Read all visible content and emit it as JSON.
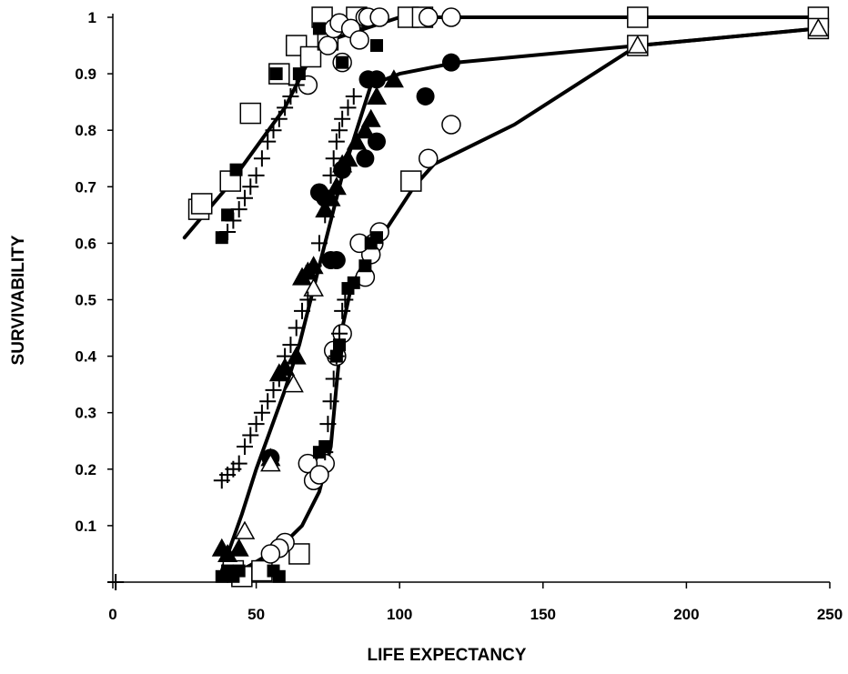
{
  "chart_data": {
    "type": "scatter",
    "title": "",
    "xlabel": "LIFE EXPECTANCY",
    "ylabel": "SURVIVABILITY",
    "xlim": [
      0,
      250
    ],
    "ylim": [
      0,
      1
    ],
    "xticks": [
      "0",
      "50",
      "100",
      "150",
      "200",
      "250"
    ],
    "yticks": [
      "0.1",
      "0.2",
      "0.3",
      "0.4",
      "0.5",
      "0.6",
      "0.7",
      "0.8",
      "0.9",
      "1"
    ],
    "yticks_values": [
      0.1,
      0.2,
      0.3,
      0.4,
      0.5,
      0.6,
      0.7,
      0.8,
      0.9,
      1
    ],
    "xticks_values": [
      0,
      50,
      100,
      150,
      200,
      250
    ],
    "grid": false,
    "legend": "none",
    "series": [
      {
        "marker": "open-square",
        "points": [
          [
            30,
            0.66
          ],
          [
            31,
            0.67
          ],
          [
            41,
            0.71
          ],
          [
            48,
            0.83
          ],
          [
            58,
            0.9
          ],
          [
            64,
            0.95
          ],
          [
            69,
            0.93
          ],
          [
            73,
            1
          ],
          [
            75,
            0.96
          ],
          [
            85,
            1
          ],
          [
            103,
            1
          ],
          [
            108,
            1
          ],
          [
            183,
            1
          ],
          [
            246,
            1
          ],
          [
            42,
            0.02
          ],
          [
            45,
            0.01
          ],
          [
            52,
            0.02
          ],
          [
            65,
            0.05
          ],
          [
            104,
            0.71
          ],
          [
            183,
            0.95
          ],
          [
            246,
            0.98
          ]
        ]
      },
      {
        "marker": "open-circle",
        "points": [
          [
            68,
            0.88
          ],
          [
            75,
            0.95
          ],
          [
            77,
            0.98
          ],
          [
            79,
            0.99
          ],
          [
            80,
            0.92
          ],
          [
            83,
            0.98
          ],
          [
            86,
            0.96
          ],
          [
            88,
            1
          ],
          [
            89,
            1
          ],
          [
            93,
            1
          ],
          [
            110,
            1
          ],
          [
            118,
            1
          ],
          [
            118,
            0.81
          ],
          [
            110,
            0.75
          ],
          [
            93,
            0.62
          ],
          [
            91,
            0.6
          ],
          [
            90,
            0.58
          ],
          [
            88,
            0.54
          ],
          [
            86,
            0.6
          ],
          [
            80,
            0.44
          ],
          [
            78,
            0.4
          ],
          [
            77,
            0.41
          ],
          [
            74,
            0.21
          ],
          [
            68,
            0.21
          ],
          [
            70,
            0.18
          ],
          [
            72,
            0.19
          ],
          [
            60,
            0.07
          ],
          [
            58,
            0.06
          ],
          [
            55,
            0.05
          ]
        ]
      },
      {
        "marker": "filled-circle",
        "points": [
          [
            72,
            0.69
          ],
          [
            74,
            0.68
          ],
          [
            76,
            0.57
          ],
          [
            78,
            0.57
          ],
          [
            80,
            0.73
          ],
          [
            88,
            0.75
          ],
          [
            89,
            0.89
          ],
          [
            92,
            0.89
          ],
          [
            92,
            0.78
          ],
          [
            109,
            0.86
          ],
          [
            118,
            0.92
          ],
          [
            55,
            0.22
          ]
        ]
      },
      {
        "marker": "filled-triangle",
        "points": [
          [
            38,
            0.06
          ],
          [
            40,
            0.05
          ],
          [
            44,
            0.06
          ],
          [
            55,
            0.22
          ],
          [
            58,
            0.37
          ],
          [
            60,
            0.38
          ],
          [
            64,
            0.4
          ],
          [
            66,
            0.54
          ],
          [
            68,
            0.55
          ],
          [
            70,
            0.56
          ],
          [
            74,
            0.66
          ],
          [
            76,
            0.68
          ],
          [
            78,
            0.7
          ],
          [
            80,
            0.74
          ],
          [
            82,
            0.75
          ],
          [
            85,
            0.78
          ],
          [
            88,
            0.8
          ],
          [
            90,
            0.82
          ],
          [
            92,
            0.86
          ],
          [
            98,
            0.89
          ]
        ]
      },
      {
        "marker": "open-triangle",
        "points": [
          [
            46,
            0.09
          ],
          [
            55,
            0.21
          ],
          [
            63,
            0.35
          ],
          [
            70,
            0.52
          ],
          [
            183,
            0.95
          ],
          [
            246,
            0.98
          ]
        ]
      },
      {
        "marker": "filled-square",
        "points": [
          [
            38,
            0.01
          ],
          [
            40,
            0.02
          ],
          [
            42,
            0.01
          ],
          [
            44,
            0.02
          ],
          [
            56,
            0.02
          ],
          [
            58,
            0.01
          ],
          [
            38,
            0.61
          ],
          [
            40,
            0.65
          ],
          [
            43,
            0.73
          ],
          [
            57,
            0.9
          ],
          [
            65,
            0.9
          ],
          [
            72,
            0.98
          ],
          [
            80,
            0.92
          ],
          [
            92,
            0.95
          ],
          [
            72,
            0.23
          ],
          [
            74,
            0.24
          ],
          [
            78,
            0.4
          ],
          [
            79,
            0.42
          ],
          [
            82,
            0.52
          ],
          [
            84,
            0.53
          ],
          [
            88,
            0.56
          ],
          [
            90,
            0.6
          ],
          [
            92,
            0.61
          ]
        ]
      },
      {
        "marker": "plus",
        "points": [
          [
            38,
            0.18
          ],
          [
            40,
            0.19
          ],
          [
            42,
            0.2
          ],
          [
            44,
            0.21
          ],
          [
            46,
            0.24
          ],
          [
            48,
            0.26
          ],
          [
            50,
            0.28
          ],
          [
            52,
            0.3
          ],
          [
            54,
            0.32
          ],
          [
            56,
            0.34
          ],
          [
            58,
            0.36
          ],
          [
            60,
            0.4
          ],
          [
            62,
            0.42
          ],
          [
            64,
            0.45
          ],
          [
            66,
            0.48
          ],
          [
            68,
            0.5
          ],
          [
            70,
            0.56
          ],
          [
            72,
            0.6
          ],
          [
            74,
            0.65
          ],
          [
            75,
            0.68
          ],
          [
            76,
            0.72
          ],
          [
            77,
            0.75
          ],
          [
            78,
            0.78
          ],
          [
            79,
            0.8
          ],
          [
            80,
            0.82
          ],
          [
            82,
            0.84
          ],
          [
            84,
            0.86
          ],
          [
            40,
            0.62
          ],
          [
            42,
            0.64
          ],
          [
            44,
            0.66
          ],
          [
            46,
            0.68
          ],
          [
            48,
            0.7
          ],
          [
            50,
            0.72
          ],
          [
            52,
            0.75
          ],
          [
            54,
            0.78
          ],
          [
            56,
            0.8
          ],
          [
            58,
            0.82
          ],
          [
            60,
            0.84
          ],
          [
            62,
            0.86
          ],
          [
            64,
            0.88
          ],
          [
            74,
            0.23
          ],
          [
            75,
            0.28
          ],
          [
            76,
            0.32
          ],
          [
            77,
            0.36
          ],
          [
            78,
            0.4
          ],
          [
            79,
            0.44
          ],
          [
            80,
            0.48
          ],
          [
            81,
            0.5
          ],
          [
            1,
            0
          ]
        ]
      }
    ],
    "fit_lines": [
      {
        "points": [
          [
            25,
            0.61
          ],
          [
            40,
            0.7
          ],
          [
            50,
            0.77
          ],
          [
            60,
            0.84
          ],
          [
            68,
            0.92
          ],
          [
            76,
            0.96
          ],
          [
            88,
            0.98
          ],
          [
            100,
            1
          ],
          [
            150,
            1
          ],
          [
            246,
            1
          ]
        ]
      },
      {
        "points": [
          [
            38,
            0.02
          ],
          [
            45,
            0.12
          ],
          [
            50,
            0.2
          ],
          [
            55,
            0.27
          ],
          [
            60,
            0.34
          ],
          [
            65,
            0.42
          ],
          [
            70,
            0.52
          ],
          [
            75,
            0.62
          ],
          [
            80,
            0.72
          ],
          [
            85,
            0.8
          ],
          [
            90,
            0.88
          ],
          [
            100,
            0.9
          ],
          [
            120,
            0.92
          ],
          [
            183,
            0.95
          ],
          [
            246,
            0.98
          ]
        ]
      },
      {
        "points": [
          [
            40,
            0.01
          ],
          [
            48,
            0.03
          ],
          [
            58,
            0.06
          ],
          [
            66,
            0.1
          ],
          [
            72,
            0.16
          ],
          [
            76,
            0.24
          ],
          [
            78,
            0.35
          ],
          [
            80,
            0.45
          ],
          [
            83,
            0.52
          ],
          [
            88,
            0.57
          ],
          [
            96,
            0.63
          ],
          [
            105,
            0.7
          ],
          [
            112,
            0.74
          ],
          [
            140,
            0.81
          ],
          [
            183,
            0.95
          ],
          [
            246,
            0.98
          ]
        ]
      }
    ]
  }
}
